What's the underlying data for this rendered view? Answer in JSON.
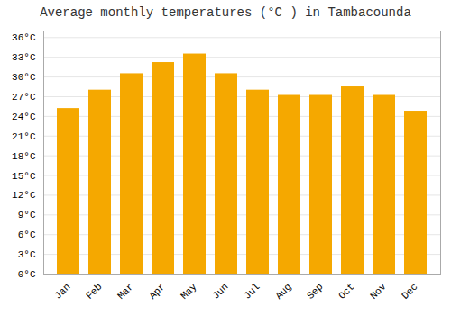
{
  "chart_data": {
    "type": "bar",
    "title": "Average monthly temperatures (°C ) in Tambacounda",
    "categories": [
      "Jan",
      "Feb",
      "Mar",
      "Apr",
      "May",
      "Jun",
      "Jul",
      "Aug",
      "Sep",
      "Oct",
      "Nov",
      "Dec"
    ],
    "values": [
      25.2,
      28.0,
      30.5,
      32.2,
      33.5,
      30.5,
      28.0,
      27.2,
      27.2,
      28.5,
      27.2,
      24.8
    ],
    "color": "#F5A800",
    "ylim": [
      0,
      37
    ],
    "yticks": [
      {
        "value": 0,
        "label": "0°C"
      },
      {
        "value": 3,
        "label": "3°C"
      },
      {
        "value": 6,
        "label": "6°C"
      },
      {
        "value": 9,
        "label": "9°C"
      },
      {
        "value": 12,
        "label": "12°C"
      },
      {
        "value": 15,
        "label": "15°C"
      },
      {
        "value": 18,
        "label": "18°C"
      },
      {
        "value": 21,
        "label": "21°C"
      },
      {
        "value": 24,
        "label": "24°C"
      },
      {
        "value": 27,
        "label": "27°C"
      },
      {
        "value": 30,
        "label": "30°C"
      },
      {
        "value": 33,
        "label": "33°C"
      },
      {
        "value": 36,
        "label": "36°C"
      }
    ],
    "grid": true
  }
}
